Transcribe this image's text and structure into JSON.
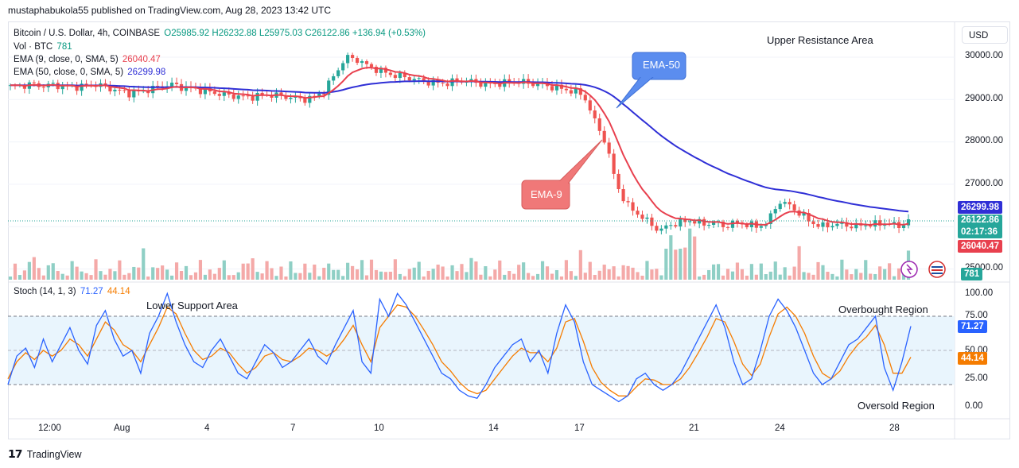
{
  "header": {
    "publisher": "mustaphabukola55 published on TradingView.com, Aug 28, 2023 13:42 UTC"
  },
  "legend": {
    "symbol": "Bitcoin / U.S. Dollar, 4h, COINBASE",
    "ohlc": "O25985.92 H26232.88 L25975.03 C26122.86 +136.94 (+0.53%)",
    "vol_label": "Vol · BTC",
    "vol_value": "781",
    "ema9_label": "EMA (9, close, 0, SMA, 5)",
    "ema9_value": "26040.47",
    "ema50_label": "EMA (50, close, 0, SMA, 5)",
    "ema50_value": "26299.98",
    "stoch_label": "Stoch (14, 1, 3)",
    "stoch_k": "71.27",
    "stoch_d": "44.14"
  },
  "currency_button": "USD",
  "price_axis": [
    "30000.00",
    "29000.00",
    "28000.00",
    "27000.00",
    "25000.00"
  ],
  "stoch_axis": [
    "100.00",
    "75.00",
    "50.00",
    "25.00",
    "0.00"
  ],
  "price_tags": {
    "ema50": "26299.98",
    "close": "26122.86",
    "countdown": "02:17:36",
    "ema9": "26040.47",
    "volume": "781",
    "stoch_k": "71.27",
    "stoch_d": "44.14"
  },
  "time_axis": [
    "12:00",
    "Aug",
    "4",
    "7",
    "10",
    "14",
    "17",
    "21",
    "24",
    "28"
  ],
  "annotations": {
    "upper_resistance": "Upper Resistance Area",
    "ema50_callout": "EMA-50",
    "ema9_callout": "EMA-9",
    "lower_support": "Lower Support Area",
    "overbought": "Overbought Region",
    "oversold": "Oversold Region"
  },
  "footer": {
    "brand": "TradingView"
  },
  "colors": {
    "bull": "#26a69a",
    "bear": "#ef5350",
    "ema9": "#e8404e",
    "ema50": "#2f2fd6",
    "stoch_k": "#2962ff",
    "stoch_d": "#f57c00",
    "vol_bull": "#8fcfc5",
    "vol_bear": "#f4a9a8"
  },
  "chart_data": [
    {
      "type": "candlestick",
      "title": "Bitcoin / U.S. Dollar, 4h, COINBASE",
      "ylim": [
        25000,
        30500
      ],
      "x_ticks": [
        "12:00",
        "Aug",
        "4",
        "7",
        "10",
        "14",
        "17",
        "21",
        "24",
        "28"
      ],
      "close_path": [
        29300,
        29330,
        29360,
        29320,
        29350,
        29310,
        29300,
        29330,
        29360,
        29280,
        29200,
        29150,
        29180,
        29250,
        29310,
        29360,
        29280,
        29250,
        29200,
        29150,
        29100,
        29080,
        29050,
        29100,
        29120,
        29080,
        29050,
        29000,
        29050,
        29200,
        29600,
        30000,
        29950,
        29800,
        29700,
        29600,
        29550,
        29500,
        29450,
        29400,
        29380,
        29420,
        29450,
        29400,
        29350,
        29380,
        29400,
        29420,
        29380,
        29360,
        29300,
        29250,
        29200,
        29100,
        28500,
        28000,
        27000,
        26500,
        26300,
        26100,
        25900,
        26050,
        26100,
        26150,
        26050,
        26100,
        26000,
        26100,
        26050,
        26000,
        26100,
        26600,
        26500,
        26300,
        26100,
        26000,
        26050,
        26050,
        26000,
        26050,
        26050,
        26100,
        26000,
        26122.86
      ],
      "ema9_last": 26040.47,
      "ema50_last": 26299.98
    },
    {
      "type": "bar",
      "title": "Vol · BTC",
      "last_value": 781
    },
    {
      "type": "line",
      "title": "Stoch (14, 1, 3)",
      "ylim": [
        0,
        100
      ],
      "bands": [
        20,
        50,
        80
      ],
      "series": [
        {
          "name": "%K",
          "last": 71.27,
          "values": [
            20,
            45,
            52,
            35,
            60,
            40,
            55,
            70,
            50,
            38,
            72,
            85,
            60,
            45,
            50,
            30,
            65,
            80,
            100,
            75,
            55,
            40,
            35,
            50,
            60,
            45,
            30,
            25,
            40,
            55,
            48,
            35,
            40,
            50,
            60,
            45,
            38,
            55,
            70,
            85,
            40,
            30,
            95,
            80,
            100,
            90,
            75,
            60,
            45,
            30,
            25,
            15,
            10,
            8,
            20,
            35,
            45,
            55,
            60,
            40,
            50,
            30,
            65,
            90,
            75,
            40,
            20,
            15,
            10,
            5,
            10,
            25,
            30,
            20,
            15,
            20,
            30,
            45,
            60,
            75,
            90,
            70,
            40,
            20,
            25,
            50,
            80,
            95,
            85,
            70,
            50,
            30,
            20,
            25,
            40,
            55,
            60,
            70,
            80,
            35,
            15,
            40,
            71.27
          ]
        },
        {
          "name": "%D",
          "last": 44.14,
          "values": [
            25,
            40,
            48,
            42,
            50,
            45,
            50,
            60,
            55,
            45,
            60,
            75,
            68,
            55,
            50,
            40,
            55,
            70,
            88,
            82,
            65,
            50,
            42,
            45,
            52,
            48,
            38,
            30,
            35,
            45,
            48,
            42,
            40,
            45,
            52,
            50,
            45,
            50,
            60,
            72,
            55,
            40,
            70,
            80,
            90,
            88,
            80,
            68,
            55,
            40,
            32,
            22,
            15,
            12,
            15,
            25,
            35,
            45,
            52,
            48,
            48,
            40,
            52,
            75,
            78,
            58,
            35,
            22,
            15,
            10,
            10,
            18,
            25,
            24,
            20,
            20,
            25,
            35,
            48,
            62,
            78,
            75,
            58,
            38,
            28,
            38,
            62,
            82,
            88,
            80,
            65,
            45,
            30,
            25,
            32,
            45,
            55,
            62,
            72,
            55,
            30,
            30,
            44.14
          ]
        }
      ]
    }
  ]
}
